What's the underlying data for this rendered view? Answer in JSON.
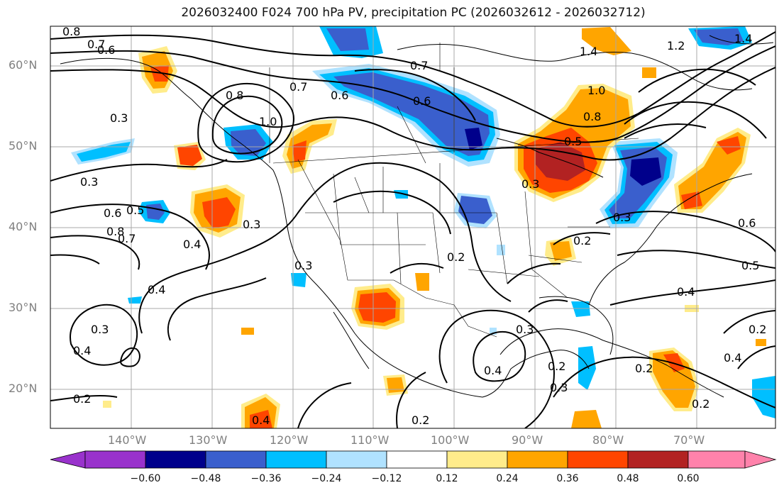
{
  "title": "2026032400 F024 700 hPa PV, precipitation PC (2026032612 - 2026032712)",
  "lat_labels": [
    "60°N",
    "50°N",
    "40°N",
    "30°N",
    "20°N"
  ],
  "lon_labels": [
    "140°W",
    "130°W",
    "120°W",
    "110°W",
    "100°W",
    "90°W",
    "80°W",
    "70°W"
  ],
  "colorbar": {
    "ticks": [
      "−0.60",
      "−0.48",
      "−0.36",
      "−0.24",
      "−0.12",
      "0.12",
      "0.24",
      "0.36",
      "0.48",
      "0.60"
    ],
    "colors": [
      "#9932cc",
      "#00008b",
      "#3a5fcd",
      "#00bfff",
      "#b0e2ff",
      "#ffffff",
      "#ffec8b",
      "#ffa500",
      "#ff4500",
      "#b22222",
      "#ff82ab"
    ]
  },
  "pv_labels": [
    "0.8",
    "0.7",
    "0.6",
    "0.3",
    "0.8",
    "1.0",
    "0.7",
    "0.6",
    "0.7",
    "0.6",
    "1.4",
    "1.2",
    "1.0",
    "0.8",
    "0.5",
    "0.3",
    "0.3",
    "0.6",
    "0.5",
    "0.8",
    "0.7",
    "0.4",
    "0.3",
    "0.4",
    "0.3",
    "0.4",
    "0.2",
    "0.3",
    "0.2",
    "0.3",
    "0.4",
    "0.2",
    "0.3",
    "0.2",
    "0.4",
    "0.2",
    "0.3",
    "0.4",
    "0.2",
    "0.4",
    "0.5",
    "0.6",
    "0.2",
    "0.2",
    "1.4"
  ]
}
